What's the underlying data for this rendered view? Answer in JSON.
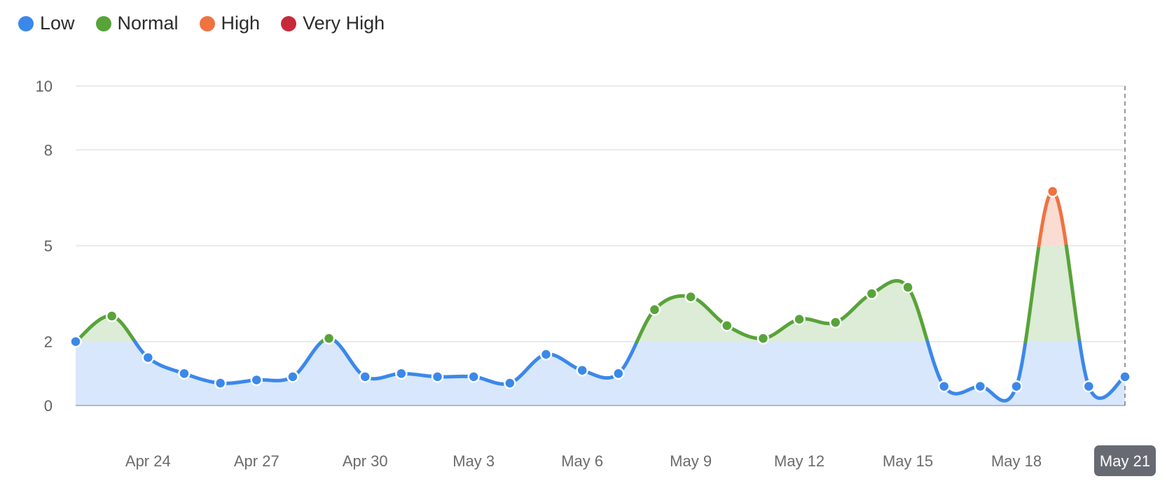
{
  "legend": [
    {
      "label": "Low",
      "color": "#3b88eb"
    },
    {
      "label": "Normal",
      "color": "#58a33a"
    },
    {
      "label": "High",
      "color": "#ef7340"
    },
    {
      "label": "Very High",
      "color": "#c8293a"
    }
  ],
  "chart_data": {
    "type": "area",
    "x_start": "Apr 22",
    "x_end": "May 21",
    "ylim": [
      0,
      10
    ],
    "yticks": [
      0,
      2,
      5,
      8,
      10
    ],
    "xtick_labels": [
      "Apr 24",
      "Apr 27",
      "Apr 30",
      "May 3",
      "May 6",
      "May 9",
      "May 12",
      "May 15",
      "May 18",
      "May 21"
    ],
    "highlighted_x": "May 21",
    "thresholds": [
      {
        "label": "Low",
        "from": 0,
        "to": 2,
        "color": "#3b88eb",
        "fill": "#d8e7fb"
      },
      {
        "label": "Normal",
        "from": 2,
        "to": 5,
        "color": "#58a33a",
        "fill": "#dcecd6"
      },
      {
        "label": "High",
        "from": 5,
        "to": 8,
        "color": "#ef7340",
        "fill": "#fadcd3"
      },
      {
        "label": "Very High",
        "from": 8,
        "to": 10,
        "color": "#c8293a",
        "fill": "#f5d0d4"
      }
    ],
    "series": [
      {
        "values": [
          2.0,
          2.8,
          1.5,
          1.0,
          0.7,
          0.8,
          0.9,
          2.1,
          0.9,
          1.0,
          0.9,
          0.9,
          0.7,
          1.6,
          1.1,
          1.0,
          3.0,
          3.4,
          2.5,
          2.1,
          2.7,
          2.6,
          3.5,
          3.7,
          0.6,
          0.6,
          0.6,
          6.7,
          0.6,
          0.9
        ]
      }
    ],
    "grid": true
  }
}
